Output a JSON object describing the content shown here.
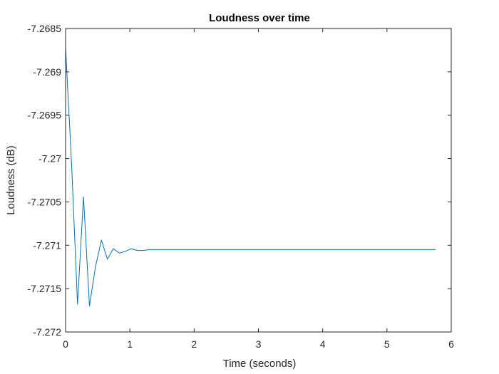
{
  "chart_data": {
    "type": "line",
    "title": "Loudness over time",
    "xlabel": "Time (seconds)",
    "ylabel": "Loudness (dB)",
    "xlim": [
      0,
      6
    ],
    "ylim": [
      -7.272,
      -7.2685
    ],
    "xticks": [
      0,
      1,
      2,
      3,
      4,
      5,
      6
    ],
    "xtick_labels": [
      "0",
      "1",
      "2",
      "3",
      "4",
      "5",
      "6"
    ],
    "yticks": [
      -7.2685,
      -7.269,
      -7.2695,
      -7.27,
      -7.2705,
      -7.271,
      -7.2715,
      -7.272
    ],
    "ytick_labels": [
      "-7.2685",
      "-7.269",
      "-7.2695",
      "-7.27",
      "-7.2705",
      "-7.271",
      "-7.2715",
      "-7.272"
    ],
    "grid": false,
    "box": true,
    "series": [
      {
        "color": "#0072BD",
        "x": [
          0,
          0.0929,
          0.1858,
          0.2786,
          0.3715,
          0.4644,
          0.5573,
          0.6502,
          0.743,
          0.8359,
          0.9288,
          1.0217,
          1.1146,
          1.2074,
          1.3003,
          1.3932,
          1.4861,
          1.579,
          1.6718,
          1.7647,
          1.8576,
          1.9505,
          2.0433,
          2.1362,
          2.2291,
          2.322,
          2.4149,
          2.5077,
          2.6006,
          2.6935,
          2.7864,
          2.8793,
          2.9721,
          3.065,
          3.1579,
          3.2508,
          3.3437,
          3.4365,
          3.5294,
          3.6223,
          3.7152,
          3.8081,
          3.9009,
          3.9938,
          4.0867,
          4.1796,
          4.2725,
          4.3653,
          4.4582,
          4.5511,
          4.644,
          4.7369,
          4.8297,
          4.9226,
          5.0155,
          5.1084,
          5.2013,
          5.2941,
          5.387,
          5.4799,
          5.5728,
          5.6656,
          5.7585
        ],
        "y": [
          -7.26872,
          -7.27006,
          -7.27168,
          -7.27044,
          -7.2717,
          -7.27125,
          -7.27094,
          -7.27116,
          -7.27104,
          -7.27109,
          -7.27107,
          -7.27104,
          -7.27106,
          -7.27106,
          -7.27105,
          -7.27105,
          -7.27105,
          -7.27105,
          -7.27105,
          -7.27105,
          -7.27105,
          -7.27105,
          -7.27105,
          -7.27105,
          -7.27105,
          -7.27105,
          -7.27105,
          -7.27105,
          -7.27105,
          -7.27105,
          -7.27105,
          -7.27105,
          -7.27105,
          -7.27105,
          -7.27105,
          -7.27105,
          -7.27105,
          -7.27105,
          -7.27105,
          -7.27105,
          -7.27105,
          -7.27105,
          -7.27105,
          -7.27105,
          -7.27105,
          -7.27105,
          -7.27105,
          -7.27105,
          -7.27105,
          -7.27105,
          -7.27105,
          -7.27105,
          -7.27105,
          -7.27105,
          -7.27105,
          -7.27105,
          -7.27105,
          -7.27105,
          -7.27105,
          -7.27105,
          -7.27105,
          -7.27105,
          -7.27105
        ]
      }
    ]
  }
}
